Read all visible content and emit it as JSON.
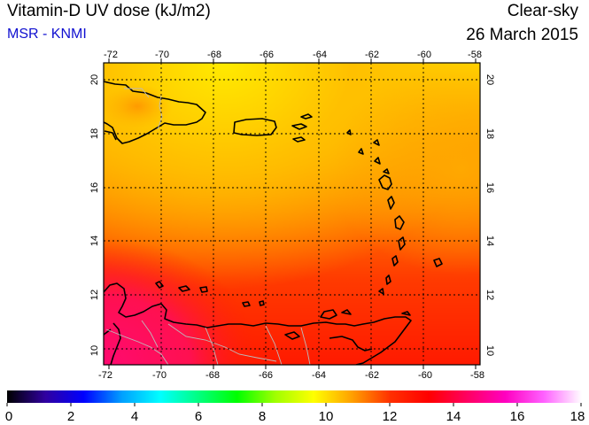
{
  "header": {
    "title": "Vitamin-D UV dose (kJ/m2)",
    "source": "MSR - KNMI",
    "sky_condition": "Clear-sky",
    "date": "26 March 2015"
  },
  "map": {
    "lon_labels": [
      "-72",
      "-70",
      "-68",
      "-66",
      "-64",
      "-62",
      "-60",
      "-58"
    ],
    "lat_labels": [
      "20",
      "18",
      "16",
      "14",
      "12",
      "10"
    ],
    "field_colors": {
      "low_yellow": "#ffe000",
      "orange": "#ffa000",
      "red_orange": "#ff6000",
      "red": "#ff2000",
      "pink": "#ff1060"
    }
  },
  "colorbar": {
    "labels": [
      "0",
      "2",
      "4",
      "6",
      "8",
      "10",
      "12",
      "14",
      "16",
      "18"
    ],
    "stops": [
      "#000000",
      "#3000a0",
      "#0000ff",
      "#00a0ff",
      "#00ffff",
      "#00ff80",
      "#00ff00",
      "#a0ff00",
      "#ffff00",
      "#ffa000",
      "#ff3000",
      "#ff0000",
      "#ff0060",
      "#ff00c0",
      "#ff60ff",
      "#ffffff"
    ]
  }
}
